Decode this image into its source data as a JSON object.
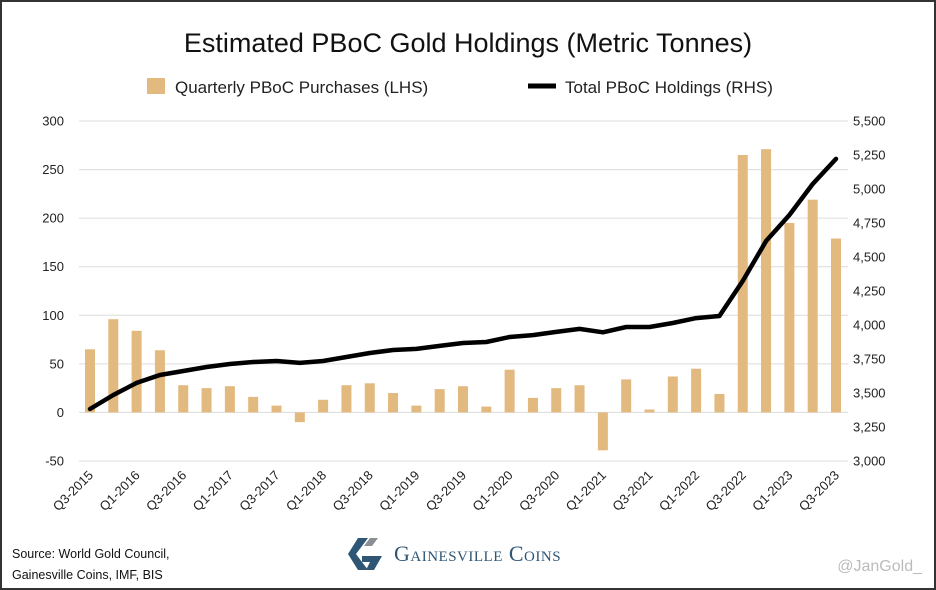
{
  "chart_data": {
    "type": "bar+line",
    "title": "Estimated PBoC Gold Holdings (Metric Tonnes)",
    "legend": [
      "Quarterly PBoC Purchases (LHS)",
      "Total PBoC Holdings (RHS)"
    ],
    "legend_placement": "top-center",
    "categories": [
      "Q3-2015",
      "Q4-2015",
      "Q1-2016",
      "Q2-2016",
      "Q3-2016",
      "Q4-2016",
      "Q1-2017",
      "Q2-2017",
      "Q3-2017",
      "Q4-2017",
      "Q1-2018",
      "Q2-2018",
      "Q3-2018",
      "Q4-2018",
      "Q1-2019",
      "Q2-2019",
      "Q3-2019",
      "Q4-2019",
      "Q1-2020",
      "Q2-2020",
      "Q3-2020",
      "Q4-2020",
      "Q1-2021",
      "Q2-2021",
      "Q3-2021",
      "Q4-2021",
      "Q1-2022",
      "Q2-2022",
      "Q3-2022",
      "Q4-2022",
      "Q1-2023",
      "Q2-2023",
      "Q3-2023"
    ],
    "x_tick_labels": [
      "Q3-2015",
      "Q1-2016",
      "Q3-2016",
      "Q1-2017",
      "Q3-2017",
      "Q1-2018",
      "Q3-2018",
      "Q1-2019",
      "Q3-2019",
      "Q1-2020",
      "Q3-2020",
      "Q1-2021",
      "Q3-2021",
      "Q1-2022",
      "Q3-2022",
      "Q1-2023",
      "Q3-2023"
    ],
    "series": [
      {
        "name": "Quarterly PBoC Purchases (LHS)",
        "type": "bar",
        "axis": "left",
        "color": "#e2b97f",
        "values": [
          65,
          96,
          84,
          64,
          28,
          25,
          27,
          16,
          7,
          -10,
          13,
          28,
          30,
          20,
          7,
          24,
          27,
          6,
          44,
          15,
          25,
          28,
          -39,
          34,
          3,
          37,
          45,
          19,
          265,
          271,
          195,
          219,
          179
        ]
      },
      {
        "name": "Total PBoC Holdings (RHS)",
        "type": "line",
        "axis": "right",
        "color": "#000000",
        "values": [
          3382,
          3485,
          3574,
          3632,
          3662,
          3691,
          3713,
          3728,
          3735,
          3721,
          3735,
          3765,
          3794,
          3816,
          3824,
          3846,
          3868,
          3875,
          3912,
          3926,
          3949,
          3971,
          3946,
          3985,
          3985,
          4015,
          4051,
          4066,
          4324,
          4618,
          4809,
          5037,
          5221
        ]
      }
    ],
    "y_left": {
      "range": [
        -50,
        300
      ],
      "ticks": [
        "-50",
        "0",
        "50",
        "100",
        "150",
        "200",
        "250",
        "300"
      ]
    },
    "y_right": {
      "range": [
        3000,
        5500
      ],
      "ticks": [
        "3,000",
        "3,250",
        "3,500",
        "3,750",
        "4,000",
        "4,250",
        "4,500",
        "4,750",
        "5,000",
        "5,250",
        "5,500"
      ]
    },
    "grid": true
  },
  "footer": {
    "source_line1": "Source: World Gold Council,",
    "source_line2": "Gainesville Coins, IMF, BIS",
    "logo_text": "Gainesville Coins",
    "handle": "@JanGold_"
  }
}
